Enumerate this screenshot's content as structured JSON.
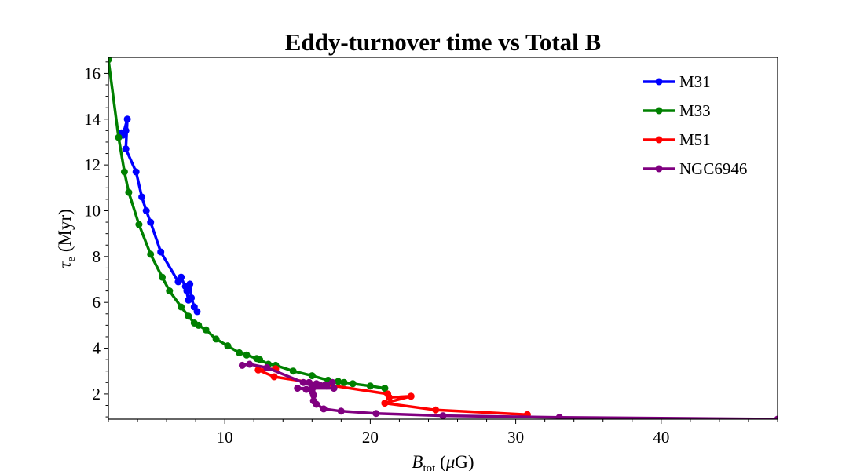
{
  "chart_data": {
    "type": "line",
    "title": "Eddy-turnover time vs Total B",
    "xlabel": {
      "main": "B",
      "sub": "tot",
      "unit_open": " (",
      "unit_greek": "μ",
      "unit_rest": "G)"
    },
    "ylabel": {
      "main": "τ",
      "sub": "e",
      "unit": " (Myr)"
    },
    "xlim": [
      2,
      48
    ],
    "ylim": [
      0.9,
      16.7
    ],
    "x_ticks": [
      10,
      20,
      30,
      40
    ],
    "x_tick_labels": [
      "10",
      "20",
      "30",
      "40"
    ],
    "y_ticks": [
      2,
      4,
      6,
      8,
      10,
      12,
      14,
      16
    ],
    "y_tick_labels": [
      "2",
      "4",
      "6",
      "8",
      "10",
      "12",
      "14",
      "16"
    ],
    "grid": false,
    "legend_position": "top-right",
    "series": [
      {
        "name": "M31",
        "color": "#0000ff",
        "points": [
          [
            2.9,
            13.4
          ],
          [
            3.2,
            13.5
          ],
          [
            3.0,
            13.3
          ],
          [
            3.3,
            14.0
          ],
          [
            3.2,
            12.7
          ],
          [
            3.9,
            11.7
          ],
          [
            4.3,
            10.6
          ],
          [
            4.6,
            10.0
          ],
          [
            4.9,
            9.5
          ],
          [
            5.6,
            8.2
          ],
          [
            6.8,
            6.9
          ],
          [
            7.0,
            7.1
          ],
          [
            7.4,
            6.5
          ],
          [
            7.5,
            6.1
          ],
          [
            7.3,
            6.7
          ],
          [
            7.6,
            6.8
          ],
          [
            7.7,
            6.2
          ],
          [
            7.9,
            5.8
          ],
          [
            8.1,
            5.6
          ]
        ]
      },
      {
        "name": "M33",
        "color": "#008000",
        "points": [
          [
            2.0,
            16.6
          ],
          [
            2.7,
            13.2
          ],
          [
            3.1,
            11.7
          ],
          [
            3.4,
            10.8
          ],
          [
            4.1,
            9.4
          ],
          [
            4.9,
            8.1
          ],
          [
            5.7,
            7.1
          ],
          [
            6.2,
            6.5
          ],
          [
            7.0,
            5.8
          ],
          [
            7.5,
            5.4
          ],
          [
            7.9,
            5.1
          ],
          [
            8.2,
            5.0
          ],
          [
            8.7,
            4.8
          ],
          [
            9.4,
            4.4
          ],
          [
            10.2,
            4.1
          ],
          [
            11.0,
            3.8
          ],
          [
            11.5,
            3.7
          ],
          [
            12.2,
            3.55
          ],
          [
            12.4,
            3.5
          ],
          [
            13.0,
            3.3
          ],
          [
            13.5,
            3.25
          ],
          [
            14.7,
            3.0
          ],
          [
            16.0,
            2.8
          ],
          [
            17.1,
            2.6
          ],
          [
            17.8,
            2.55
          ],
          [
            18.2,
            2.5
          ],
          [
            18.8,
            2.45
          ],
          [
            20.0,
            2.35
          ],
          [
            21.0,
            2.25
          ]
        ]
      },
      {
        "name": "M51",
        "color": "#ff0000",
        "points": [
          [
            13.5,
            3.1
          ],
          [
            12.3,
            3.05
          ],
          [
            13.4,
            2.75
          ],
          [
            21.2,
            2.0
          ],
          [
            21.3,
            1.85
          ],
          [
            22.8,
            1.9
          ],
          [
            21.0,
            1.6
          ],
          [
            24.5,
            1.3
          ],
          [
            30.8,
            1.1
          ]
        ]
      },
      {
        "name": "NGC6946",
        "color": "#800080",
        "points": [
          [
            11.2,
            3.25
          ],
          [
            11.7,
            3.3
          ],
          [
            12.9,
            3.15
          ],
          [
            15.4,
            2.5
          ],
          [
            16.3,
            2.45
          ],
          [
            17.0,
            2.35
          ],
          [
            17.4,
            2.5
          ],
          [
            16.9,
            2.4
          ],
          [
            16.5,
            2.4
          ],
          [
            16.1,
            2.3
          ],
          [
            17.5,
            2.25
          ],
          [
            15.0,
            2.25
          ],
          [
            15.6,
            2.2
          ],
          [
            16.0,
            2.1
          ],
          [
            15.8,
            2.5
          ],
          [
            16.1,
            1.95
          ],
          [
            16.1,
            1.7
          ],
          [
            16.3,
            1.55
          ],
          [
            16.8,
            1.35
          ],
          [
            18.0,
            1.25
          ],
          [
            20.4,
            1.15
          ],
          [
            25.0,
            1.05
          ],
          [
            33.0,
            0.98
          ],
          [
            48.0,
            0.9
          ]
        ]
      }
    ]
  }
}
